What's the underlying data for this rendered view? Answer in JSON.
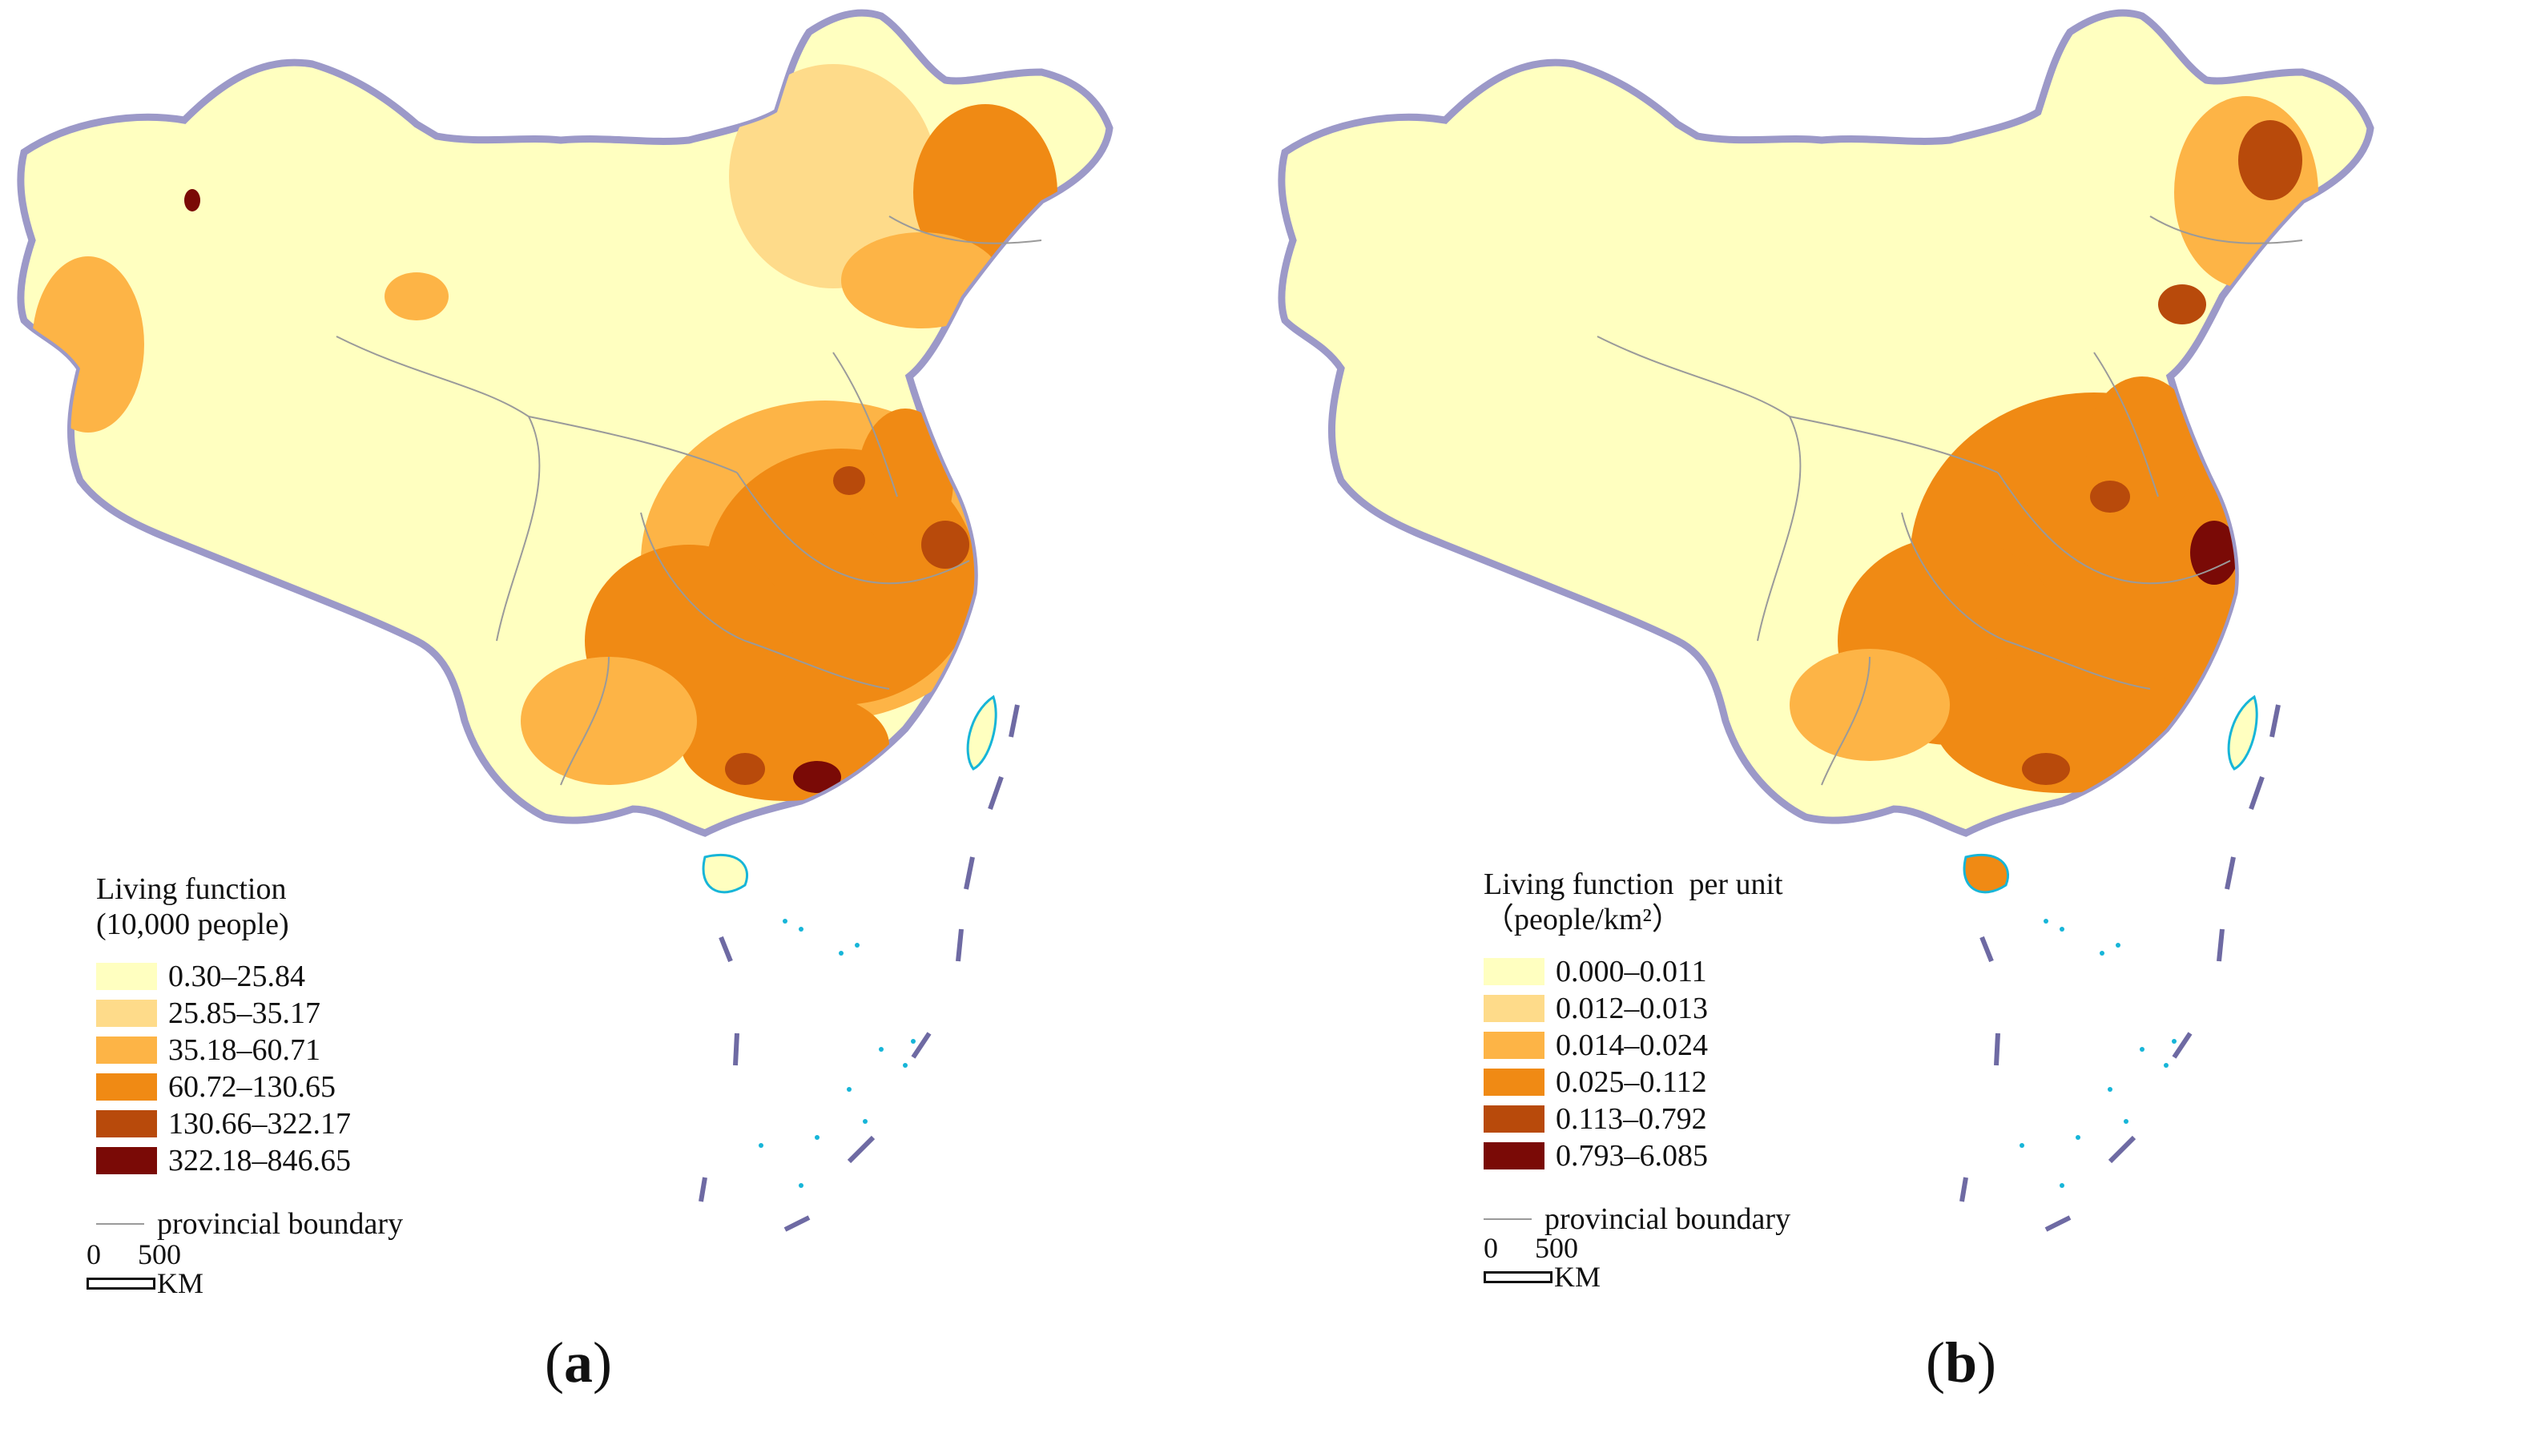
{
  "palette": [
    "#ffffc0",
    "#fedb8a",
    "#fdb446",
    "#f08a14",
    "#b84a0b",
    "#7a0a06"
  ],
  "border_color": "#9c99c8",
  "coast_color": "#17b5d8",
  "panels": [
    {
      "label_letter": "a",
      "legend": {
        "title": "Living function\n(10,000 people)",
        "classes": [
          "0.30–25.84",
          "25.85–35.17",
          "35.18–60.71",
          "60.72–130.65",
          "130.66–322.17",
          "322.18–846.65"
        ],
        "boundary_label": "provincial boundary"
      },
      "scale": {
        "zero": "0",
        "distance": "500",
        "unit": "KM"
      }
    },
    {
      "label_letter": "b",
      "legend": {
        "title": "Living function  per unit\n（people/km²）",
        "classes": [
          "0.000–0.011",
          "0.012–0.013",
          "0.014–0.024",
          "0.025–0.112",
          "0.113–0.792",
          "0.793–6.085"
        ],
        "boundary_label": "provincial boundary"
      },
      "scale": {
        "zero": "0",
        "distance": "500",
        "unit": "KM"
      }
    }
  ]
}
